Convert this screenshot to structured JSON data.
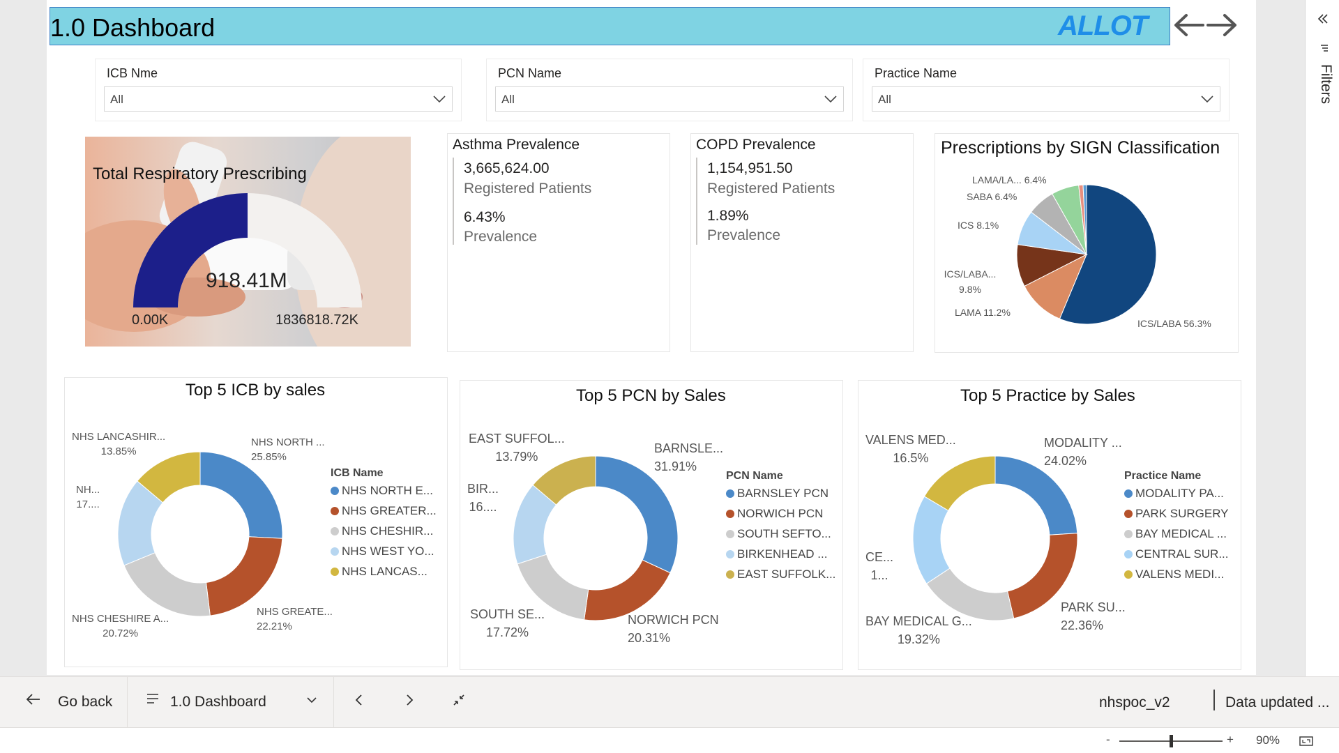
{
  "header": {
    "title": "1.0 Dashboard",
    "logo_text": "ALLOT"
  },
  "slicers": [
    {
      "label": "ICB Nme",
      "value": "All"
    },
    {
      "label": "PCN Name",
      "value": "All"
    },
    {
      "label": "Practice Name",
      "value": "All"
    }
  ],
  "gauge": {
    "title": "Total Respiratory Prescribing",
    "value_label": "918.41M",
    "min_label": "0.00K",
    "max_label": "1836818.72K",
    "fill_fraction": 0.5,
    "fill_color": "#1c1f8a",
    "track_color": "#f3f1ef"
  },
  "kpis": [
    {
      "title": "Asthma Prevalence",
      "value": "3,665,624.00",
      "value_caption": "Registered Patients",
      "rate": "6.43%",
      "rate_caption": "Prevalence"
    },
    {
      "title": "COPD Prevalence",
      "value": "1,154,951.50",
      "value_caption": "Registered Patients",
      "rate": "1.89%",
      "rate_caption": "Prevalence"
    }
  ],
  "chart_data": [
    {
      "type": "pie",
      "title": "Prescriptions by SIGN Classification",
      "slices": [
        {
          "label": "ICS/LABA 56.3%",
          "value": 56.3,
          "color": "#11467f"
        },
        {
          "label": "LAMA 11.2%",
          "value": 11.2,
          "color": "#db8b62"
        },
        {
          "label": "ICS/LABA... 9.8%",
          "value": 9.8,
          "color": "#76341a"
        },
        {
          "label": "ICS 8.1%",
          "value": 8.1,
          "color": "#a8d3f5"
        },
        {
          "label": "SABA 6.4%",
          "value": 6.4,
          "color": "#b3b3b3"
        },
        {
          "label": "LAMA/LA... 6.4%",
          "value": 6.4,
          "color": "#94d49b"
        },
        {
          "label": "",
          "value": 1.0,
          "color": "#e78f7f"
        },
        {
          "label": "",
          "value": 0.8,
          "color": "#5a9bd4"
        }
      ]
    },
    {
      "type": "pie",
      "title": "Top 5 ICB by sales",
      "legend_title": "ICB Name",
      "legend": [
        "NHS NORTH E...",
        "NHS GREATER...",
        "NHS CHESHIR...",
        "NHS WEST YO...",
        "NHS LANCAS..."
      ],
      "slices": [
        {
          "name": "NHS NORTH ...",
          "pct": "25.85%",
          "value": 25.85,
          "color": "#4b89c8"
        },
        {
          "name": "NHS GREATE...",
          "pct": "22.21%",
          "value": 22.21,
          "color": "#b5522b"
        },
        {
          "name": "NHS CHESHIRE A...",
          "pct": "20.72%",
          "value": 20.72,
          "color": "#cdcdcd"
        },
        {
          "name": "NH...",
          "pct": "17....",
          "value": 17.37,
          "color": "#b7d6f0"
        },
        {
          "name": "NHS LANCASHIR...",
          "pct": "13.85%",
          "value": 13.85,
          "color": "#d2b740"
        }
      ]
    },
    {
      "type": "pie",
      "title": "Top 5 PCN by Sales",
      "legend_title": "PCN Name",
      "legend": [
        "BARNSLEY PCN",
        "NORWICH PCN",
        "SOUTH SEFTO...",
        "BIRKENHEAD ...",
        "EAST SUFFOLK..."
      ],
      "slices": [
        {
          "name": "BARNSLE...",
          "pct": "31.91%",
          "value": 31.91,
          "color": "#4b89c8"
        },
        {
          "name": "NORWICH PCN",
          "pct": "20.31%",
          "value": 20.31,
          "color": "#b5522b"
        },
        {
          "name": "SOUTH SE...",
          "pct": "17.72%",
          "value": 17.72,
          "color": "#cdcdcd"
        },
        {
          "name": "BIR...",
          "pct": "16....",
          "value": 16.27,
          "color": "#b7d6f0"
        },
        {
          "name": "EAST SUFFOL...",
          "pct": "13.79%",
          "value": 13.79,
          "color": "#cbb14f"
        }
      ]
    },
    {
      "type": "pie",
      "title": "Top 5 Practice by Sales",
      "legend_title": "Practice Name",
      "legend": [
        "MODALITY PA...",
        "PARK SURGERY",
        "BAY MEDICAL ...",
        "CENTRAL SUR...",
        "VALENS MEDI..."
      ],
      "slices": [
        {
          "name": "MODALITY ...",
          "pct": "24.02%",
          "value": 24.02,
          "color": "#4b89c8"
        },
        {
          "name": "PARK SU...",
          "pct": "22.36%",
          "value": 22.36,
          "color": "#b5522b"
        },
        {
          "name": "BAY MEDICAL G...",
          "pct": "19.32%",
          "value": 19.32,
          "color": "#cdcdcd"
        },
        {
          "name": "CE...",
          "pct": "1...",
          "value": 17.8,
          "color": "#a8d3f5"
        },
        {
          "name": "VALENS MED...",
          "pct": "16.5%",
          "value": 16.5,
          "color": "#d2b740"
        }
      ]
    }
  ],
  "filters_pane": {
    "label": "Filters"
  },
  "bottom_bar": {
    "go_back": "Go back",
    "page_name": "1.0 Dashboard",
    "dataset": "nhspoc_v2",
    "data_updated": "Data updated ..."
  },
  "status_bar": {
    "zoom_minus": "-",
    "zoom_plus": "+",
    "zoom_level": "90%",
    "zoom_fraction": 0.5
  }
}
